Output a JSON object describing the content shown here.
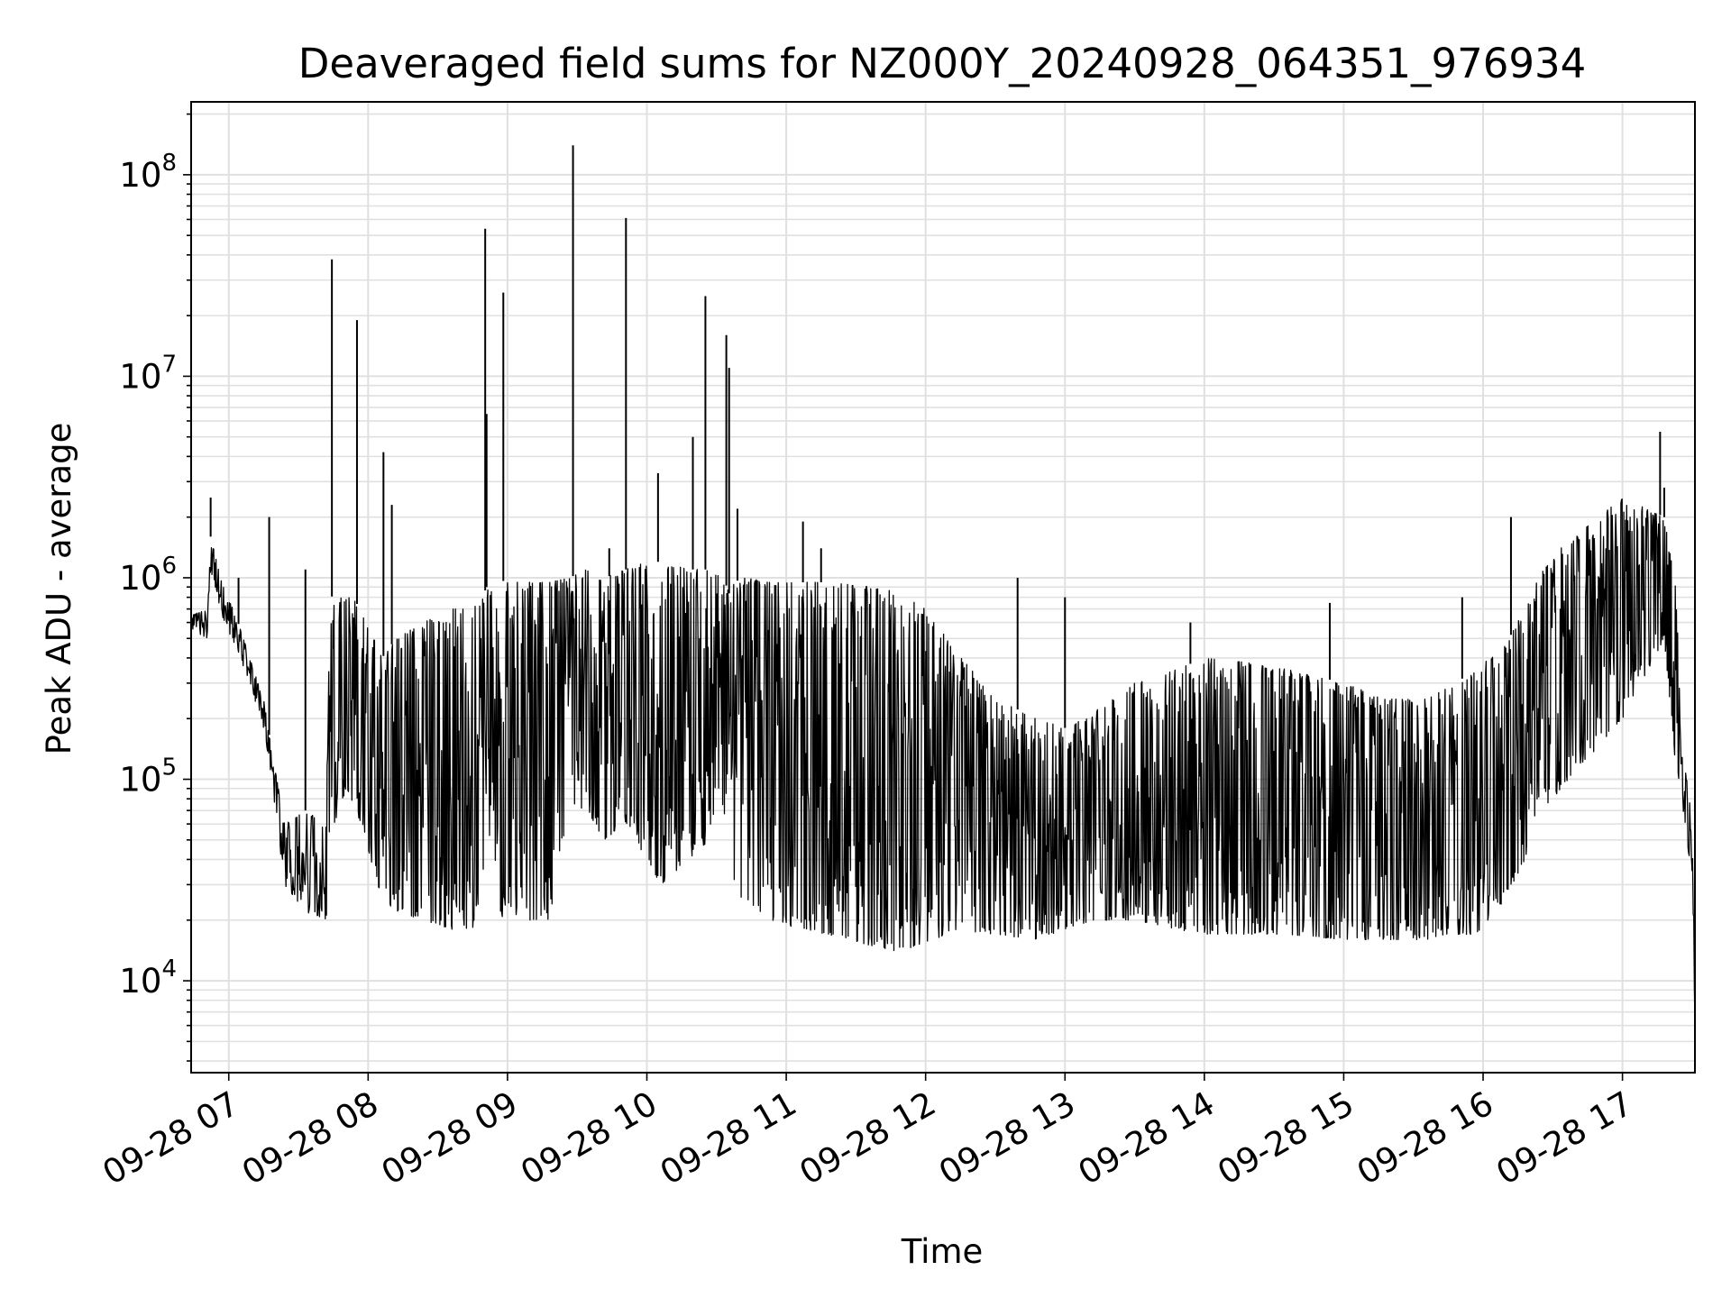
{
  "chart_data": {
    "type": "line",
    "title": "Deaveraged field sums for NZ000Y_20240928_064351_976934",
    "xlabel": "Time",
    "ylabel": "Peak ADU - average",
    "yscale": "log",
    "grid": true,
    "grid_color": "#e0e0e0",
    "line_color": "#000000",
    "x_unit": "hours",
    "x_tick_labels": [
      "09-28 07",
      "09-28 08",
      "09-28 09",
      "09-28 10",
      "09-28 11",
      "09-28 12",
      "09-28 13",
      "09-28 14",
      "09-28 15",
      "09-28 16",
      "09-28 17"
    ],
    "x_tick_values": [
      7,
      8,
      9,
      10,
      11,
      12,
      13,
      14,
      15,
      16,
      17
    ],
    "xlim": [
      6.73,
      17.52
    ],
    "y_tick_labels": [
      {
        "base": "10",
        "exp": "4",
        "value": 10000
      },
      {
        "base": "10",
        "exp": "5",
        "value": 100000
      },
      {
        "base": "10",
        "exp": "6",
        "value": 1000000
      },
      {
        "base": "10",
        "exp": "7",
        "value": 10000000
      },
      {
        "base": "10",
        "exp": "8",
        "value": 100000000
      }
    ],
    "ylim": [
      3500,
      230000000
    ],
    "envelope": {
      "x": [
        6.73,
        6.85,
        6.87,
        6.95,
        7.05,
        7.15,
        7.25,
        7.3,
        7.4,
        7.55,
        7.7,
        7.72,
        7.85,
        7.95,
        8.1,
        8.2,
        8.4,
        8.6,
        8.75,
        8.82,
        8.85,
        8.9,
        9.0,
        9.1,
        9.3,
        9.45,
        9.55,
        9.7,
        9.85,
        10.0,
        10.1,
        10.3,
        10.45,
        10.55,
        10.6,
        10.62,
        10.7,
        10.9,
        11.1,
        11.3,
        11.6,
        11.8,
        12.0,
        12.2,
        12.5,
        12.8,
        13.0,
        13.2,
        13.5,
        13.8,
        14.0,
        14.3,
        14.6,
        15.0,
        15.3,
        15.6,
        15.8,
        15.95,
        16.05,
        16.15,
        16.3,
        16.4,
        16.5,
        17.0,
        17.3,
        17.38,
        17.45,
        17.5,
        17.52
      ],
      "upper": [
        650000,
        700000,
        1600000,
        950000,
        650000,
        400000,
        250000,
        150000,
        60000,
        70000,
        60000,
        800000,
        850000,
        700000,
        400000,
        500000,
        600000,
        700000,
        700000,
        800000,
        900000,
        1000000,
        950000,
        950000,
        950000,
        1000000,
        1100000,
        1000000,
        1100000,
        1200000,
        1200000,
        1100000,
        1100000,
        1000000,
        800000,
        950000,
        1000000,
        950000,
        950000,
        950000,
        900000,
        850000,
        700000,
        450000,
        250000,
        200000,
        180000,
        220000,
        300000,
        350000,
        400000,
        380000,
        350000,
        300000,
        250000,
        250000,
        300000,
        350000,
        400000,
        450000,
        700000,
        1000000,
        1300000,
        2500000,
        2000000,
        900000,
        120000,
        60000,
        10000
      ],
      "lower": [
        550000,
        500000,
        1100000,
        650000,
        450000,
        300000,
        180000,
        110000,
        30000,
        22000,
        20000,
        50000,
        90000,
        60000,
        25000,
        22000,
        20000,
        18000,
        18000,
        25000,
        100000,
        22000,
        20000,
        20000,
        20000,
        60000,
        70000,
        50000,
        60000,
        40000,
        30000,
        40000,
        50000,
        60000,
        150000,
        28000,
        25000,
        20000,
        18000,
        17000,
        15000,
        14000,
        15000,
        18000,
        17000,
        16000,
        18000,
        20000,
        20000,
        18000,
        17000,
        17000,
        17000,
        16000,
        16000,
        16000,
        17000,
        17000,
        20000,
        25000,
        40000,
        70000,
        80000,
        200000,
        500000,
        120000,
        60000,
        30000,
        6000
      ]
    },
    "spikes": [
      {
        "x": 6.87,
        "y": 2500000
      },
      {
        "x": 7.07,
        "y": 1000000
      },
      {
        "x": 7.29,
        "y": 2000000
      },
      {
        "x": 7.55,
        "y": 1100000
      },
      {
        "x": 7.74,
        "y": 38000000
      },
      {
        "x": 7.92,
        "y": 19000000
      },
      {
        "x": 8.11,
        "y": 4200000
      },
      {
        "x": 8.17,
        "y": 2300000
      },
      {
        "x": 8.84,
        "y": 54000000
      },
      {
        "x": 8.85,
        "y": 6500000
      },
      {
        "x": 8.97,
        "y": 26000000
      },
      {
        "x": 9.47,
        "y": 140000000
      },
      {
        "x": 9.73,
        "y": 1400000
      },
      {
        "x": 9.85,
        "y": 61000000
      },
      {
        "x": 10.08,
        "y": 3300000
      },
      {
        "x": 10.33,
        "y": 5000000
      },
      {
        "x": 10.42,
        "y": 25000000
      },
      {
        "x": 10.57,
        "y": 16000000
      },
      {
        "x": 10.59,
        "y": 11000000
      },
      {
        "x": 10.65,
        "y": 2200000
      },
      {
        "x": 11.12,
        "y": 1900000
      },
      {
        "x": 11.25,
        "y": 1400000
      },
      {
        "x": 12.66,
        "y": 1000000
      },
      {
        "x": 13.0,
        "y": 800000
      },
      {
        "x": 13.9,
        "y": 600000
      },
      {
        "x": 14.9,
        "y": 750000
      },
      {
        "x": 15.85,
        "y": 800000
      },
      {
        "x": 16.2,
        "y": 2000000
      },
      {
        "x": 17.27,
        "y": 5300000
      },
      {
        "x": 17.3,
        "y": 2800000
      }
    ]
  }
}
